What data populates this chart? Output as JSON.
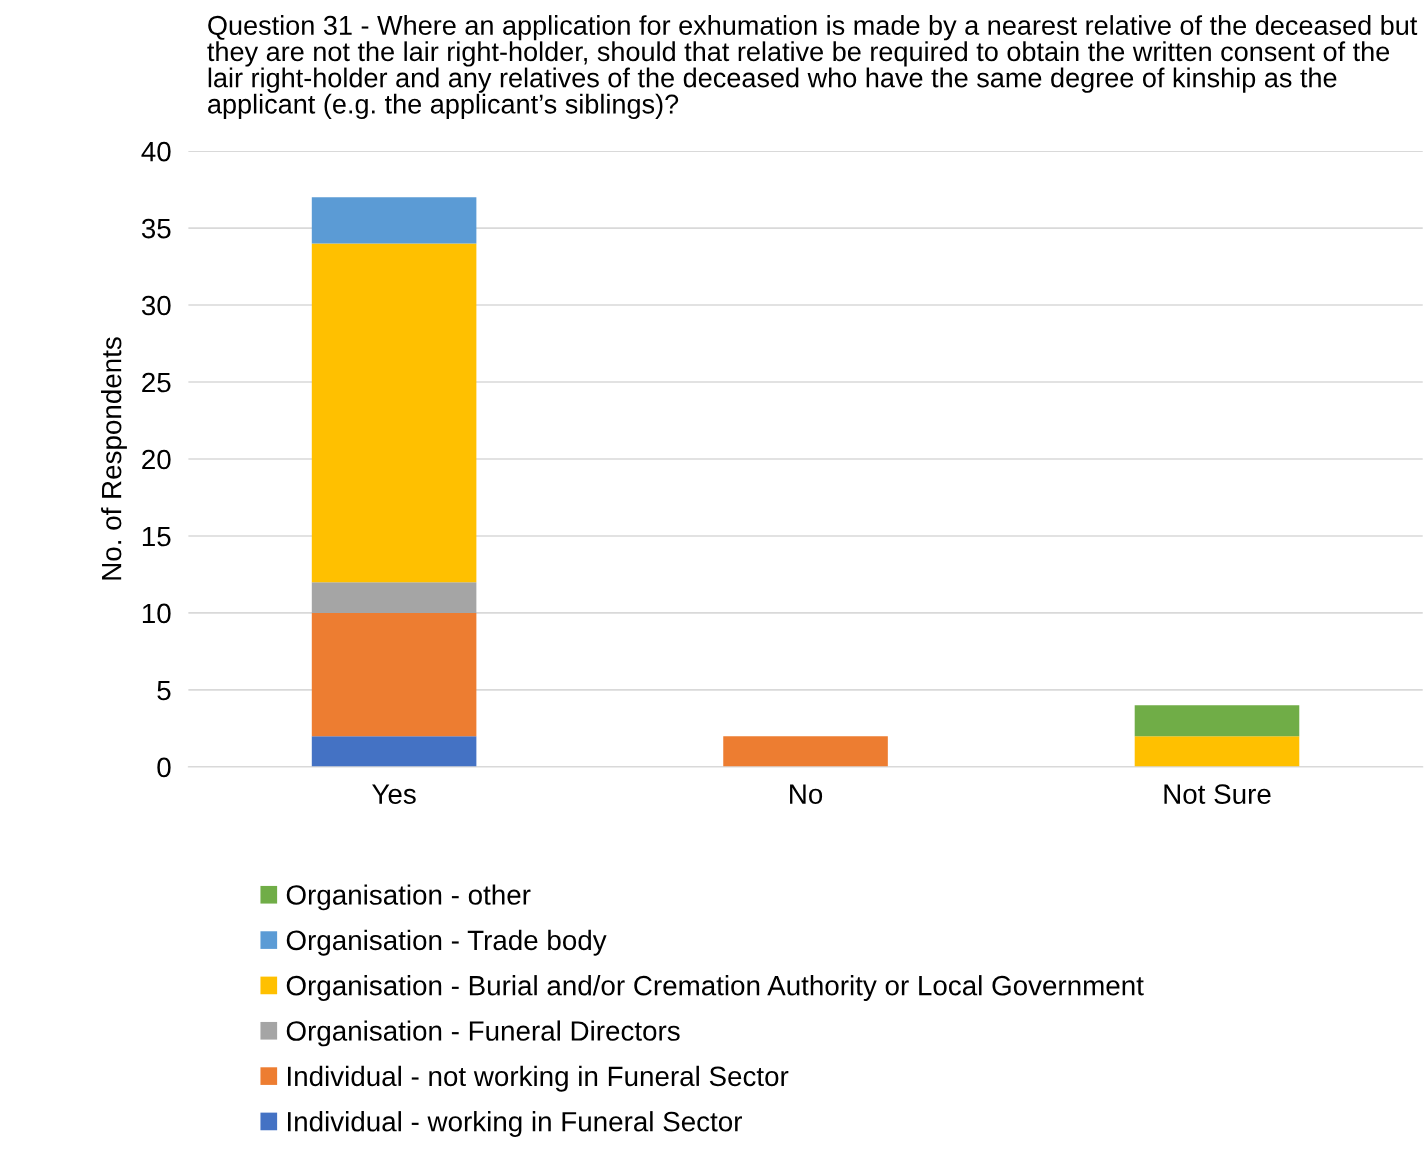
{
  "chart_data": {
    "type": "bar",
    "stacked": true,
    "title": "Question 31 - Where an application for exhumation is made by a nearest relative of the deceased but they are not the lair right-holder, should that relative be required to obtain the written consent of the lair right-holder and any relatives of the deceased who have the same degree of kinship as the applicant (e.g. the applicant’s siblings)?",
    "ylabel": "No. of Respondents",
    "categories": [
      "Yes",
      "No",
      "Not Sure"
    ],
    "series": [
      {
        "name": "Individual - working in Funeral Sector",
        "color": "#4472c4",
        "values": [
          2,
          0,
          0
        ]
      },
      {
        "name": "Individual - not working in Funeral Sector",
        "color": "#ed7d31",
        "values": [
          8,
          2,
          0
        ]
      },
      {
        "name": "Organisation - Funeral Directors",
        "color": "#a5a5a5",
        "values": [
          2,
          0,
          0
        ]
      },
      {
        "name": "Organisation - Burial and/or Cremation Authority or Local Government",
        "color": "#ffc000",
        "values": [
          22,
          0,
          2
        ]
      },
      {
        "name": "Organisation - Trade body",
        "color": "#5b9bd5",
        "values": [
          3,
          0,
          0
        ]
      },
      {
        "name": "Organisation - other",
        "color": "#70ad47",
        "values": [
          0,
          0,
          2
        ]
      }
    ],
    "ylim": [
      0,
      40
    ],
    "yticks": [
      0,
      5,
      10,
      15,
      20,
      25,
      30,
      35,
      40
    ],
    "grid": "y",
    "legend": "bottom"
  }
}
